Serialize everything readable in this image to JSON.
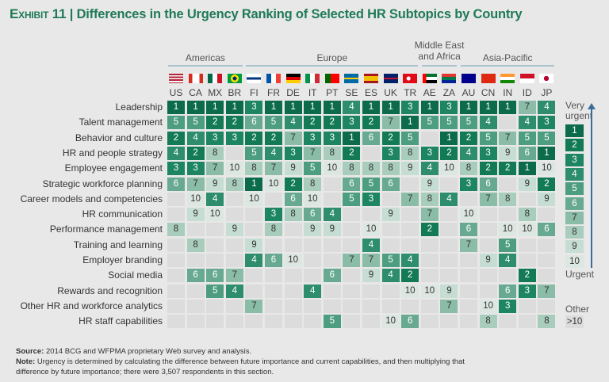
{
  "title": {
    "prefix": "Exhibit 11",
    "separator": "|",
    "text": "Differences in the Urgency Ranking of Selected HR Subtopics by Country"
  },
  "chart_data": {
    "type": "heatmap",
    "title": "Differences in the Urgency Ranking of Selected HR Subtopics by Country",
    "regions": [
      {
        "name": "Americas",
        "countries": [
          "US",
          "CA",
          "MX",
          "BR"
        ]
      },
      {
        "name": "Europe",
        "countries": [
          "FI",
          "FR",
          "DE",
          "IT",
          "PT",
          "SE",
          "ES",
          "UK",
          "TR"
        ]
      },
      {
        "name": "Middle East and Africa",
        "countries": [
          "AE",
          "ZA"
        ]
      },
      {
        "name": "Asia-Pacific",
        "countries": [
          "AU",
          "CN",
          "IN",
          "ID",
          "JP"
        ]
      }
    ],
    "columns": [
      "US",
      "CA",
      "MX",
      "BR",
      "FI",
      "FR",
      "DE",
      "IT",
      "PT",
      "SE",
      "ES",
      "UK",
      "TR",
      "AE",
      "ZA",
      "AU",
      "CN",
      "IN",
      "ID",
      "JP"
    ],
    "rows": [
      "Leadership",
      "Talent management",
      "Behavior and culture",
      "HR and people strategy",
      "Employee engagement",
      "Strategic workforce planning",
      "Career models and competencies",
      "HR communication",
      "Performance management",
      "Training and learning",
      "Employer branding",
      "Social media",
      "Rewards and recognition",
      "Other HR and workforce analytics",
      "HR staff capabilities"
    ],
    "values": [
      [
        1,
        1,
        1,
        1,
        3,
        1,
        1,
        1,
        1,
        4,
        1,
        1,
        3,
        1,
        3,
        1,
        1,
        1,
        7,
        4
      ],
      [
        5,
        5,
        2,
        2,
        6,
        5,
        4,
        2,
        2,
        3,
        2,
        7,
        1,
        5,
        5,
        5,
        4,
        null,
        4,
        3
      ],
      [
        2,
        4,
        3,
        3,
        2,
        2,
        7,
        3,
        3,
        1,
        6,
        2,
        5,
        null,
        1,
        2,
        5,
        7,
        5,
        5
      ],
      [
        4,
        2,
        8,
        null,
        5,
        4,
        3,
        7,
        8,
        2,
        null,
        3,
        8,
        3,
        2,
        4,
        3,
        9,
        6,
        1
      ],
      [
        3,
        3,
        7,
        10,
        8,
        7,
        9,
        5,
        10,
        8,
        8,
        8,
        9,
        4,
        10,
        8,
        2,
        2,
        1,
        10
      ],
      [
        6,
        7,
        9,
        8,
        1,
        10,
        2,
        8,
        null,
        6,
        5,
        6,
        null,
        9,
        null,
        3,
        6,
        null,
        9,
        2
      ],
      [
        null,
        10,
        4,
        null,
        10,
        null,
        6,
        10,
        null,
        5,
        3,
        null,
        7,
        8,
        4,
        null,
        7,
        8,
        null,
        9
      ],
      [
        null,
        9,
        10,
        null,
        null,
        3,
        8,
        6,
        4,
        null,
        null,
        9,
        null,
        7,
        null,
        10,
        null,
        null,
        8,
        null
      ],
      [
        8,
        null,
        null,
        9,
        null,
        8,
        null,
        9,
        9,
        null,
        10,
        null,
        null,
        2,
        null,
        6,
        null,
        10,
        10,
        6
      ],
      [
        null,
        8,
        null,
        null,
        9,
        null,
        null,
        null,
        null,
        null,
        4,
        null,
        null,
        null,
        null,
        7,
        null,
        5,
        null,
        null
      ],
      [
        null,
        null,
        null,
        null,
        4,
        6,
        10,
        null,
        null,
        7,
        7,
        5,
        4,
        null,
        null,
        null,
        9,
        4,
        null,
        null
      ],
      [
        null,
        6,
        6,
        7,
        null,
        null,
        null,
        null,
        6,
        null,
        9,
        4,
        2,
        null,
        null,
        null,
        null,
        null,
        2,
        null
      ],
      [
        null,
        null,
        5,
        4,
        null,
        null,
        null,
        4,
        null,
        null,
        null,
        null,
        10,
        10,
        9,
        null,
        null,
        6,
        3,
        7
      ],
      [
        null,
        null,
        null,
        null,
        7,
        null,
        null,
        null,
        null,
        null,
        null,
        null,
        null,
        null,
        7,
        null,
        10,
        3,
        null,
        null
      ],
      [
        null,
        null,
        null,
        null,
        null,
        null,
        null,
        null,
        5,
        null,
        null,
        10,
        6,
        null,
        null,
        null,
        8,
        null,
        null,
        8
      ]
    ],
    "legend": {
      "top_label": "Very urgent",
      "bottom_label": "Urgent",
      "levels": [
        1,
        2,
        3,
        4,
        5,
        6,
        7,
        8,
        9,
        10
      ],
      "other_label": "Other",
      "other_value": ">10"
    },
    "colors": {
      "1": "#0b6b4a",
      "2": "#137a56",
      "3": "#1e8562",
      "4": "#2e8d6c",
      "5": "#4d9d80",
      "6": "#67aa91",
      "7": "#8abca7",
      "8": "#a9cdbd",
      "9": "#c6ddd3",
      "10": "#dde7e2",
      "empty": "#dcdcdc"
    }
  },
  "footer": {
    "source_label": "Source:",
    "source_text": "2014 BCG and WFPMA proprietary Web survey and analysis.",
    "note_label": "Note:",
    "note_text_1": "Urgency is determined by calculating the difference between future importance and current capabilities, and then multiplying that",
    "note_text_2": "difference by future importance; there were 3,507 respondents in this section."
  }
}
